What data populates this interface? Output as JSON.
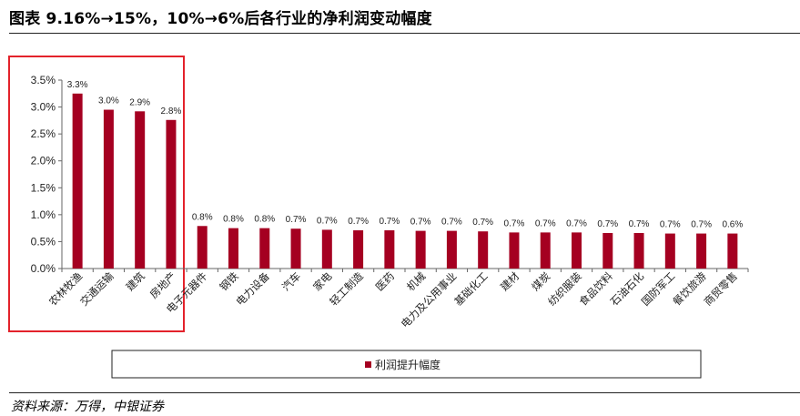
{
  "figure": {
    "title": "图表 9.16%→15%，10%→6%后各行业的净利润变动幅度",
    "source": "资料来源：万得，中银证券"
  },
  "colors": {
    "bar": "#A50021",
    "highlight_box": "#E3222B"
  },
  "chart_data": {
    "type": "bar",
    "title": "",
    "xlabel": "",
    "ylabel": "",
    "ylim": [
      0,
      3.5
    ],
    "yticks": [
      "0.0%",
      "0.5%",
      "1.0%",
      "1.5%",
      "2.0%",
      "2.5%",
      "3.0%",
      "3.5%"
    ],
    "grid": false,
    "legend": "bottom",
    "categories": [
      "农林牧渔",
      "交通运输",
      "建筑",
      "房地产",
      "电子元器件",
      "钢铁",
      "电力设备",
      "汽车",
      "家电",
      "轻工制造",
      "医药",
      "机械",
      "电力及公用事业",
      "基础化工",
      "建材",
      "煤炭",
      "纺织服装",
      "食品饮料",
      "石油石化",
      "国防军工",
      "餐饮旅游",
      "商贸零售"
    ],
    "series": [
      {
        "name": "利润提升幅度",
        "values": [
          3.25,
          2.95,
          2.92,
          2.76,
          0.79,
          0.75,
          0.75,
          0.74,
          0.72,
          0.71,
          0.71,
          0.7,
          0.7,
          0.69,
          0.67,
          0.67,
          0.67,
          0.66,
          0.66,
          0.65,
          0.65,
          0.65
        ],
        "labels": [
          "3.3%",
          "3.0%",
          "2.9%",
          "2.8%",
          "0.8%",
          "0.8%",
          "0.8%",
          "0.7%",
          "0.7%",
          "0.7%",
          "0.7%",
          "0.7%",
          "0.7%",
          "0.7%",
          "0.7%",
          "0.7%",
          "0.7%",
          "0.7%",
          "0.7%",
          "0.7%",
          "0.7%",
          "0.6%"
        ]
      }
    ]
  }
}
